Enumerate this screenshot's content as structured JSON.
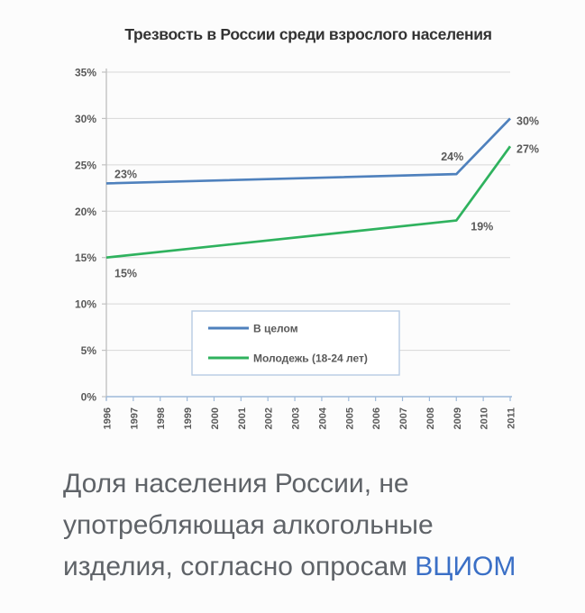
{
  "chart_data": {
    "type": "line",
    "title": "Трезвость в России среди взрослого населения",
    "xlabel": "",
    "ylabel": "",
    "xlim": [
      1996,
      2011
    ],
    "ylim": [
      0,
      35
    ],
    "grid": true,
    "legend_position": "inside-bottom-center",
    "x_ticks": [
      {
        "value": 1996,
        "label": "1996"
      },
      {
        "value": 1997,
        "label": "1997"
      },
      {
        "value": 1998,
        "label": "1998"
      },
      {
        "value": 1999,
        "label": "1999"
      },
      {
        "value": 2000,
        "label": "2000"
      },
      {
        "value": 2001,
        "label": "2001"
      },
      {
        "value": 2002,
        "label": "2002"
      },
      {
        "value": 2003,
        "label": "2003"
      },
      {
        "value": 2004,
        "label": "2004"
      },
      {
        "value": 2005,
        "label": "2005"
      },
      {
        "value": 2006,
        "label": "2006"
      },
      {
        "value": 2007,
        "label": "2007"
      },
      {
        "value": 2008,
        "label": "2008"
      },
      {
        "value": 2009,
        "label": "2009"
      },
      {
        "value": 2010,
        "label": "2010"
      },
      {
        "value": 2011,
        "label": "2011"
      }
    ],
    "y_ticks": [
      {
        "value": 0,
        "label": "0%"
      },
      {
        "value": 5,
        "label": "5%"
      },
      {
        "value": 10,
        "label": "10%"
      },
      {
        "value": 15,
        "label": "15%"
      },
      {
        "value": 20,
        "label": "20%"
      },
      {
        "value": 25,
        "label": "25%"
      },
      {
        "value": 30,
        "label": "30%"
      },
      {
        "value": 35,
        "label": "35%"
      }
    ],
    "series": [
      {
        "name": "В целом",
        "color": "#4f81bd",
        "points": [
          {
            "x": 1996,
            "y": 23,
            "label": "23%",
            "label_pos": "above-start"
          },
          {
            "x": 2009,
            "y": 24,
            "label": "24%",
            "label_pos": "above-end"
          },
          {
            "x": 2011,
            "y": 30,
            "label": "30%",
            "label_pos": "right"
          }
        ]
      },
      {
        "name": "Молодежь (18-24 лет)",
        "color": "#2fb25e",
        "points": [
          {
            "x": 1996,
            "y": 15,
            "label": "15%",
            "label_pos": "below-start"
          },
          {
            "x": 2009,
            "y": 19,
            "label": "19%",
            "label_pos": "below-right"
          },
          {
            "x": 2011,
            "y": 27,
            "label": "27%",
            "label_pos": "right"
          }
        ]
      }
    ],
    "colors": {
      "gridline": "#d7d7d7",
      "y_axis": "#c2c2c2",
      "x_axis": "#9db9da",
      "tick_label": "#595959",
      "data_label": "#595959",
      "legend_border": "#b7cbe3",
      "legend_bg": "#ffffff",
      "legend_text": "#595959"
    }
  },
  "caption": {
    "lines": [
      "Доля населения России, не",
      "употребляющая алкогольные"
    ],
    "last_line_text": "изделия, согласно опросам ",
    "link_label": "ВЦИОМ",
    "text_color": "#5f6368",
    "link_color": "#3a6fc6"
  }
}
